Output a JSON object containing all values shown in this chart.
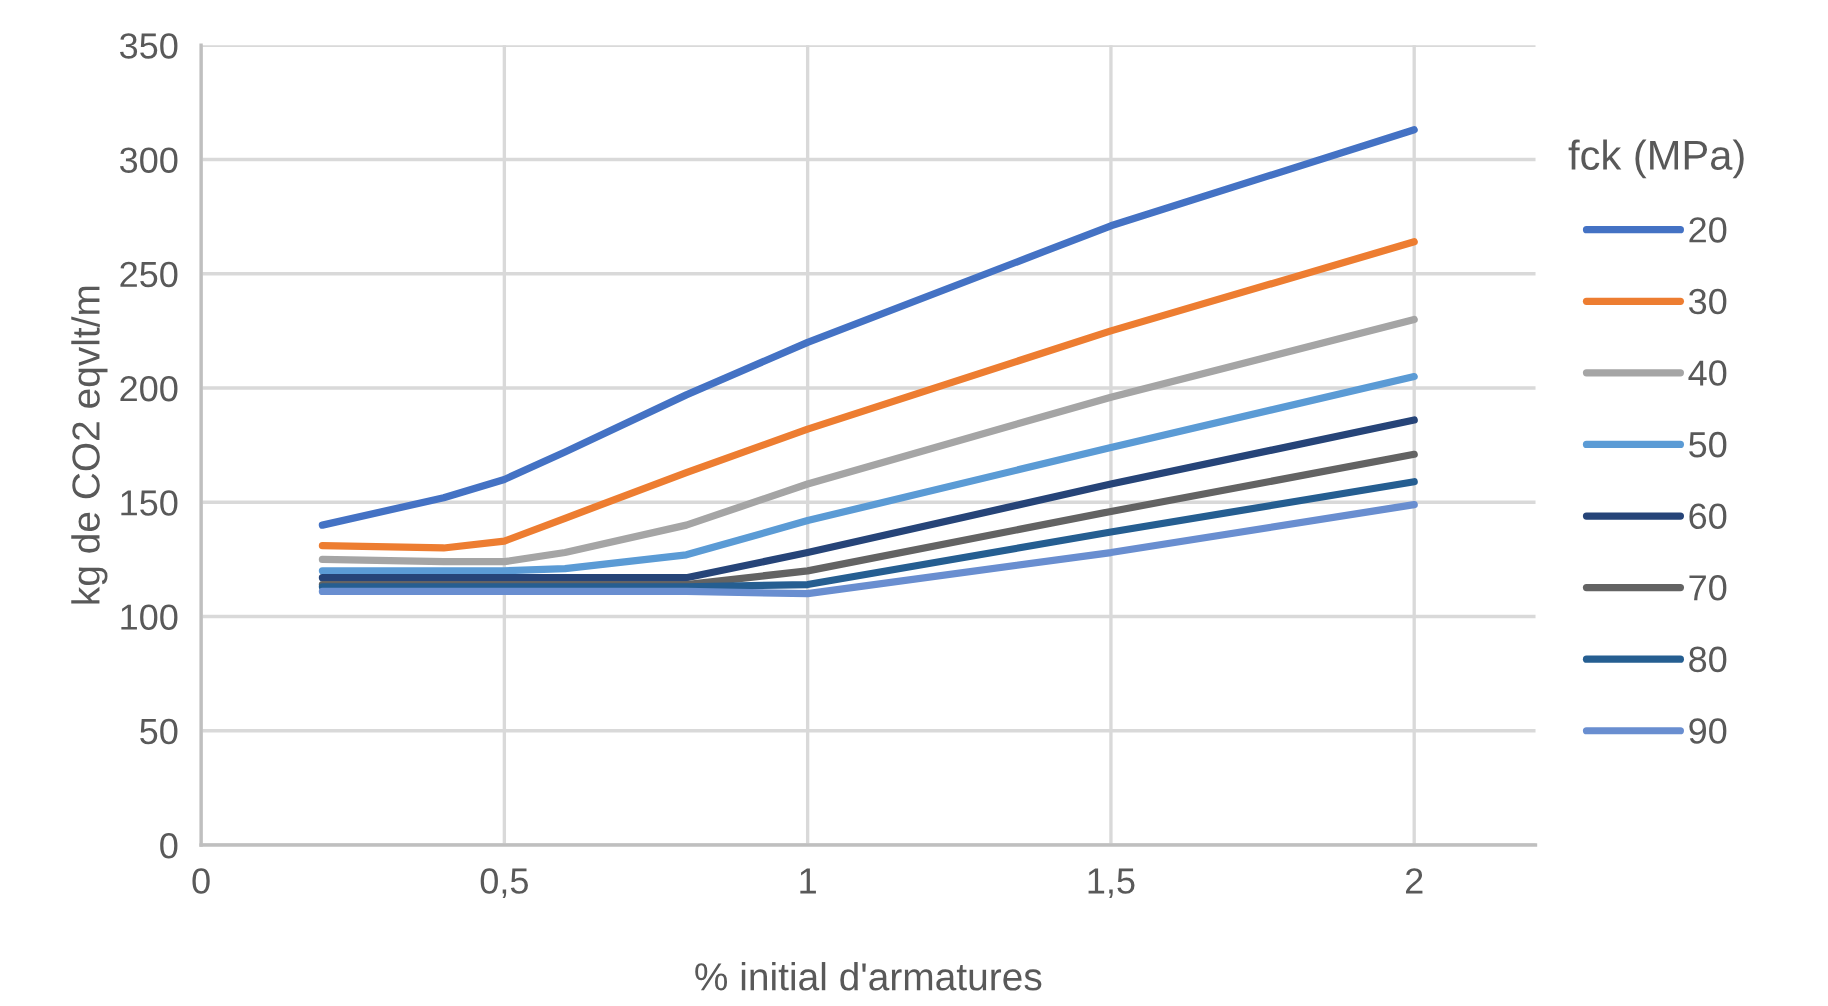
{
  "chart_data": {
    "type": "line",
    "xlabel": "% initial d'armatures",
    "ylabel": "kg de CO2 eqvlt/m",
    "legend_title": "fck (MPa)",
    "x": [
      0.2,
      0.4,
      0.5,
      0.6,
      0.8,
      1,
      1.5,
      2
    ],
    "series": [
      {
        "name": "20",
        "color": "#4472c4",
        "values": [
          140,
          152,
          160,
          172,
          197,
          220,
          271,
          313
        ]
      },
      {
        "name": "30",
        "color": "#ed7d31",
        "values": [
          131,
          130,
          133,
          143,
          163,
          182,
          225,
          264
        ]
      },
      {
        "name": "40",
        "color": "#a5a5a5",
        "values": [
          125,
          124,
          124,
          128,
          140,
          158,
          196,
          230
        ]
      },
      {
        "name": "50",
        "color": "#5b9bd5",
        "values": [
          120,
          120,
          120,
          121,
          127,
          142,
          174,
          205
        ]
      },
      {
        "name": "60",
        "color": "#264478",
        "values": [
          117,
          117,
          117,
          117,
          117,
          128,
          158,
          186
        ]
      },
      {
        "name": "70",
        "color": "#636363",
        "values": [
          114,
          114,
          114,
          114,
          114,
          120,
          146,
          171
        ]
      },
      {
        "name": "80",
        "color": "#255e91",
        "values": [
          113,
          113,
          113,
          113,
          113,
          114,
          137,
          159
        ]
      },
      {
        "name": "90",
        "color": "#698ed0",
        "values": [
          111,
          111,
          111,
          111,
          111,
          110,
          128,
          149
        ]
      }
    ],
    "xlim": [
      0,
      2.2
    ],
    "xticks": [
      0,
      {
        "value": 0.5,
        "label": "0,5"
      },
      1,
      {
        "value": 1.5,
        "label": "1,5"
      },
      2
    ],
    "ylim": [
      0,
      350
    ],
    "yticks": [
      0,
      50,
      100,
      150,
      200,
      250,
      300,
      350
    ],
    "grid": true,
    "legend": "right",
    "marker": "none",
    "line_style": "solid"
  }
}
